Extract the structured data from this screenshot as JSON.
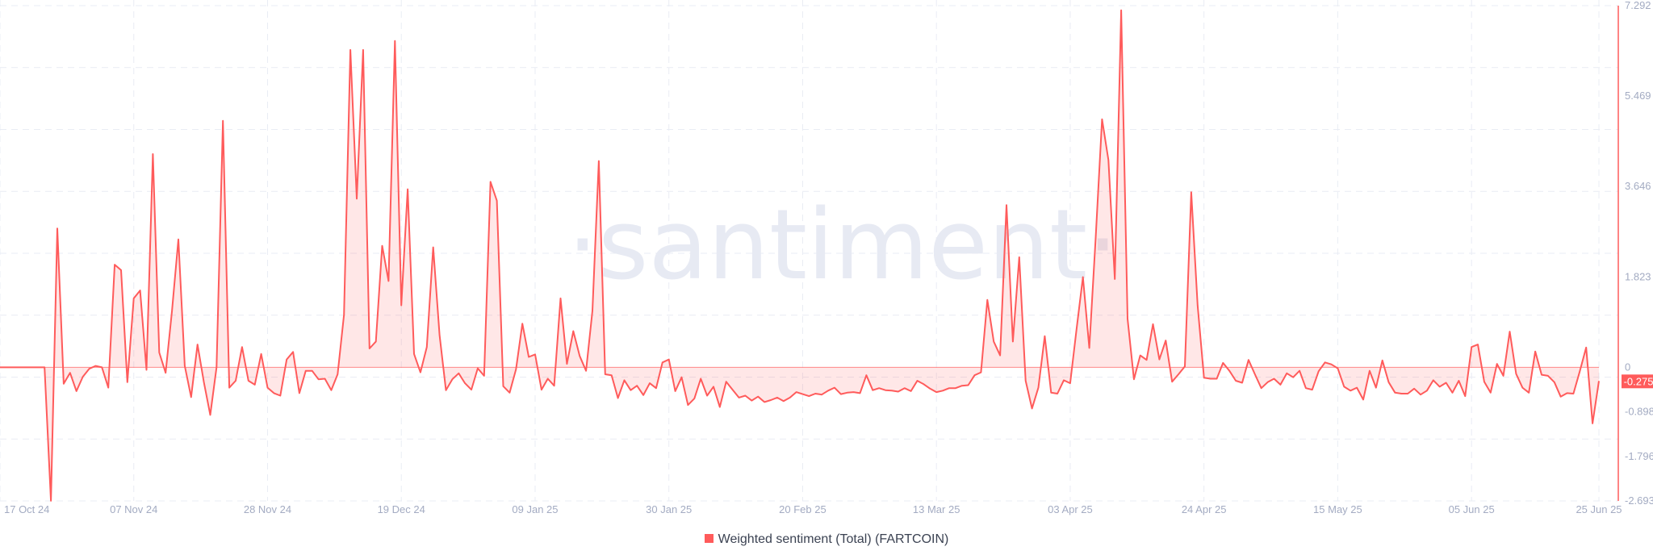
{
  "chart_data": {
    "type": "area",
    "watermark": "·santiment·",
    "series": [
      {
        "name": "Weighted sentiment (Total) (FARTCOIN)",
        "color": "#ff5b5b",
        "dates": {
          "start": "2024-10-17",
          "end": "2025-06-25",
          "interval": "1 day"
        },
        "values": [
          0,
          0,
          0,
          0,
          0,
          0,
          0,
          0,
          -2.69,
          2.8,
          -0.33,
          -0.11,
          -0.48,
          -0.19,
          -0.03,
          0.03,
          0,
          -0.41,
          2.07,
          1.96,
          -0.3,
          1.39,
          1.55,
          -0.05,
          4.3,
          0.3,
          -0.11,
          1.14,
          2.58,
          0.03,
          -0.6,
          0.46,
          -0.3,
          -0.96,
          0,
          4.97,
          -0.41,
          -0.27,
          0.41,
          -0.27,
          -0.35,
          0.27,
          -0.41,
          -0.52,
          -0.57,
          0.16,
          0.31,
          -0.52,
          -0.07,
          -0.07,
          -0.24,
          -0.23,
          -0.46,
          -0.14,
          1.06,
          6.4,
          3.4,
          6.4,
          0.38,
          0.52,
          2.45,
          1.74,
          6.58,
          1.25,
          3.59,
          0.27,
          -0.1,
          0.41,
          2.42,
          0.65,
          -0.46,
          -0.24,
          -0.12,
          -0.32,
          -0.45,
          -0.02,
          -0.17,
          3.74,
          3.36,
          -0.38,
          -0.51,
          -0.04,
          0.88,
          0.21,
          0.26,
          -0.45,
          -0.23,
          -0.37,
          1.39,
          0.07,
          0.73,
          0.23,
          -0.07,
          1.14,
          4.16,
          -0.14,
          -0.16,
          -0.62,
          -0.26,
          -0.46,
          -0.37,
          -0.56,
          -0.32,
          -0.42,
          0.1,
          0.16,
          -0.48,
          -0.2,
          -0.76,
          -0.63,
          -0.23,
          -0.57,
          -0.39,
          -0.8,
          -0.29,
          -0.45,
          -0.61,
          -0.57,
          -0.67,
          -0.59,
          -0.7,
          -0.66,
          -0.61,
          -0.68,
          -0.61,
          -0.5,
          -0.54,
          -0.58,
          -0.53,
          -0.55,
          -0.47,
          -0.41,
          -0.54,
          -0.51,
          -0.5,
          -0.52,
          -0.16,
          -0.46,
          -0.42,
          -0.46,
          -0.47,
          -0.49,
          -0.42,
          -0.48,
          -0.27,
          -0.34,
          -0.43,
          -0.5,
          -0.47,
          -0.42,
          -0.42,
          -0.37,
          -0.36,
          -0.16,
          -0.1,
          1.36,
          0.52,
          0.24,
          3.27,
          0.52,
          2.22,
          -0.27,
          -0.83,
          -0.41,
          0.63,
          -0.51,
          -0.53,
          -0.26,
          -0.32,
          0.77,
          1.82,
          0.39,
          2.61,
          5.0,
          4.18,
          1.78,
          7.2,
          0.98,
          -0.24,
          0.24,
          0.15,
          0.87,
          0.16,
          0.54,
          -0.29,
          -0.14,
          0.02,
          3.53,
          1.25,
          -0.21,
          -0.23,
          -0.23,
          0.09,
          -0.07,
          -0.27,
          -0.31,
          0.15,
          -0.14,
          -0.42,
          -0.3,
          -0.23,
          -0.35,
          -0.12,
          -0.2,
          -0.07,
          -0.42,
          -0.45,
          -0.08,
          0.1,
          0.06,
          -0.02,
          -0.39,
          -0.47,
          -0.41,
          -0.65,
          -0.07,
          -0.41,
          0.14,
          -0.3,
          -0.51,
          -0.53,
          -0.53,
          -0.43,
          -0.55,
          -0.47,
          -0.26,
          -0.39,
          -0.31,
          -0.51,
          -0.27,
          -0.58,
          0.41,
          0.46,
          -0.29,
          -0.51,
          0.07,
          -0.17,
          0.72,
          -0.13,
          -0.41,
          -0.51,
          0.32,
          -0.15,
          -0.17,
          -0.3,
          -0.59,
          -0.52,
          -0.53,
          -0.08,
          0.4,
          -1.13,
          -0.275
        ]
      }
    ],
    "x_ticks": [
      "17 Oct 24",
      "07 Nov 24",
      "28 Nov 24",
      "19 Dec 24",
      "09 Jan 25",
      "30 Jan 25",
      "20 Feb 25",
      "13 Mar 25",
      "03 Apr 25",
      "24 Apr 25",
      "15 May 25",
      "05 Jun 25",
      "25 Jun 25"
    ],
    "y_ticks": [
      "7.292",
      "5.469",
      "3.646",
      "1.823",
      "0",
      "-0.898",
      "-1.796",
      "-2.693"
    ],
    "y_tick_values": [
      7.292,
      5.469,
      3.646,
      1.823,
      0,
      -0.898,
      -1.796,
      -2.693
    ],
    "ylim": [
      -2.693,
      7.292
    ],
    "last_value_label": "-0.275",
    "last_value": -0.275,
    "grid": true,
    "legend_placement": "bottom-center",
    "y_axis_side": "right"
  },
  "legend": {
    "label": "Weighted sentiment (Total) (FARTCOIN)",
    "color": "#ff5b5b"
  }
}
